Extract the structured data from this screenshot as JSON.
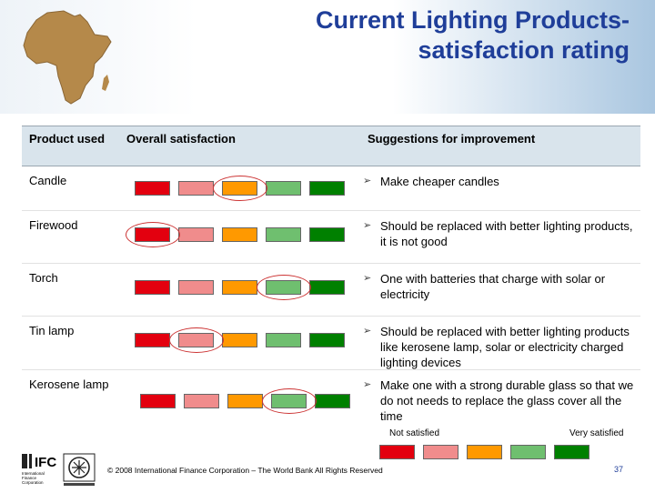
{
  "slide": {
    "title_line1": "Current Lighting Products-",
    "title_line2": "satisfaction rating"
  },
  "table": {
    "headers": [
      "Product used",
      "Overall satisfaction",
      "Suggestions for improvement"
    ],
    "scale_colors": [
      "#e3000f",
      "#f08c8c",
      "#ff9900",
      "#6fbf6f",
      "#008000"
    ],
    "rows": [
      {
        "product": "Candle",
        "rating": 3,
        "suggestion": "Make cheaper candles"
      },
      {
        "product": "Firewood",
        "rating": 1,
        "suggestion": "Should be replaced with better lighting products, it is not good"
      },
      {
        "product": "Torch",
        "rating": 4,
        "suggestion": "One with batteries that charge with solar or electricity"
      },
      {
        "product": "Tin lamp",
        "rating": 2,
        "suggestion": "Should be replaced with better lighting products like kerosene lamp, solar or electricity charged lighting devices"
      },
      {
        "product": "Kerosene lamp",
        "rating": 4,
        "suggestion": "Make one with a strong durable glass so that we do not needs to replace the glass cover all the time"
      }
    ]
  },
  "legend": {
    "low": "Not satisfied",
    "high": "Very satisfied"
  },
  "footer": {
    "copyright": "© 2008 International Finance Corporation – The World Bank All Rights Reserved",
    "page_number": "37",
    "ifc_logo": "IFC",
    "ifc_lines": [
      "International",
      "Finance",
      "Corporation"
    ],
    "ring_color": "#cc3333"
  }
}
